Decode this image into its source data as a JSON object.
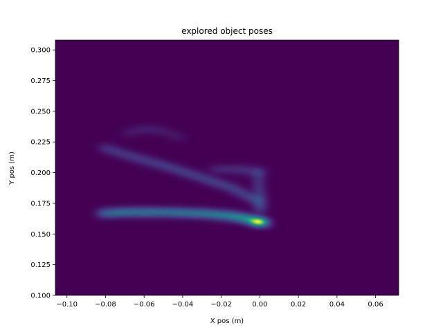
{
  "chart_data": {
    "type": "heatmap",
    "title": "explored object poses",
    "xlabel": "X pos (m)",
    "ylabel": "Y pos (m)",
    "xlim": [
      -0.106,
      0.072
    ],
    "ylim": [
      0.1,
      0.308
    ],
    "x_ticks": [
      {
        "value": -0.1,
        "label": "−0.10"
      },
      {
        "value": -0.08,
        "label": "−0.08"
      },
      {
        "value": -0.06,
        "label": "−0.06"
      },
      {
        "value": -0.04,
        "label": "−0.04"
      },
      {
        "value": -0.02,
        "label": "−0.02"
      },
      {
        "value": 0.0,
        "label": "0.00"
      },
      {
        "value": 0.02,
        "label": "0.02"
      },
      {
        "value": 0.04,
        "label": "0.04"
      },
      {
        "value": 0.06,
        "label": "0.06"
      }
    ],
    "y_ticks": [
      {
        "value": 0.1,
        "label": "0.100"
      },
      {
        "value": 0.125,
        "label": "0.125"
      },
      {
        "value": 0.15,
        "label": "0.150"
      },
      {
        "value": 0.175,
        "label": "0.175"
      },
      {
        "value": 0.2,
        "label": "0.200"
      },
      {
        "value": 0.225,
        "label": "0.225"
      },
      {
        "value": 0.25,
        "label": "0.250"
      },
      {
        "value": 0.275,
        "label": "0.275"
      },
      {
        "value": 0.3,
        "label": "0.300"
      }
    ],
    "colormap": "viridis",
    "background_color": "#440154",
    "grid": false,
    "density_curves": [
      {
        "x": [
          -0.083,
          -0.07,
          -0.05,
          -0.03,
          -0.015,
          -0.005,
          0.0,
          0.004
        ],
        "y": [
          0.167,
          0.168,
          0.168,
          0.167,
          0.165,
          0.162,
          0.16,
          0.159
        ],
        "intensity": [
          0.45,
          0.55,
          0.55,
          0.6,
          0.7,
          0.85,
          1.0,
          0.6
        ]
      },
      {
        "x": [
          -0.082,
          -0.07,
          -0.05,
          -0.03,
          -0.015,
          -0.005,
          0.0
        ],
        "y": [
          0.221,
          0.215,
          0.206,
          0.196,
          0.188,
          0.18,
          0.176
        ],
        "intensity": [
          0.2,
          0.22,
          0.24,
          0.25,
          0.26,
          0.28,
          0.3
        ]
      },
      {
        "x": [
          -0.001,
          -0.001,
          0.0,
          0.0
        ],
        "y": [
          0.201,
          0.19,
          0.18,
          0.168
        ],
        "intensity": [
          0.22,
          0.25,
          0.3,
          0.4
        ]
      },
      {
        "x": [
          -0.025,
          -0.015,
          -0.005,
          0.002
        ],
        "y": [
          0.203,
          0.203,
          0.202,
          0.2
        ],
        "intensity": [
          0.12,
          0.15,
          0.18,
          0.2
        ]
      },
      {
        "x": [
          -0.07,
          -0.06,
          -0.05,
          -0.04
        ],
        "y": [
          0.232,
          0.236,
          0.234,
          0.228
        ],
        "intensity": [
          0.08,
          0.09,
          0.08,
          0.07
        ]
      }
    ]
  }
}
